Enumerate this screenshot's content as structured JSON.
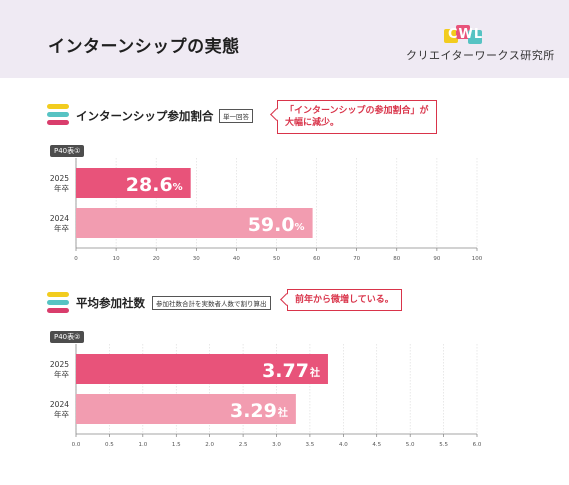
{
  "header": {
    "title": "インターンシップの実態"
  },
  "logo": {
    "mark": "CWL",
    "text": "クリエイターワークス研究所"
  },
  "section1": {
    "title": "インターンシップ参加割合",
    "tag": "単一回答",
    "callout_line1": "「インターンシップの参加割合」が",
    "callout_line2": "大幅に減少。",
    "table_label": "P40表①"
  },
  "section2": {
    "title": "平均参加社数",
    "tag": "参加社数合計を実数者人数で割り算出",
    "callout_line1": "前年から微増している。",
    "table_label": "P40表②"
  },
  "colors": {
    "accent_2025": "#e8537a",
    "accent_2024": "#f29cb0",
    "callout": "#d9344a",
    "legend_yellow": "#f2cc1e",
    "legend_teal": "#56c3c3",
    "legend_pink": "#d93d6c"
  },
  "chart_data": [
    {
      "type": "bar",
      "orientation": "horizontal",
      "categories": [
        [
          "2025",
          "年卒"
        ],
        [
          "2024",
          "年卒"
        ]
      ],
      "values": [
        28.6,
        59.0
      ],
      "labels": [
        "28.6",
        "59.0"
      ],
      "unit": "%",
      "xlim": [
        0,
        100
      ],
      "ticks": [
        "0",
        "10",
        "20",
        "30",
        "40",
        "50",
        "60",
        "70",
        "80",
        "90",
        "100"
      ],
      "grid": true
    },
    {
      "type": "bar",
      "orientation": "horizontal",
      "categories": [
        [
          "2025",
          "年卒"
        ],
        [
          "2024",
          "年卒"
        ]
      ],
      "values": [
        3.77,
        3.29
      ],
      "labels": [
        "3.77",
        "3.29"
      ],
      "unit": "社",
      "xlim": [
        0,
        6
      ],
      "ticks": [
        "0.0",
        "0.5",
        "1.0",
        "1.5",
        "2.0",
        "2.5",
        "3.0",
        "3.5",
        "4.0",
        "4.5",
        "5.0",
        "5.5",
        "6.0"
      ],
      "grid": true
    }
  ]
}
